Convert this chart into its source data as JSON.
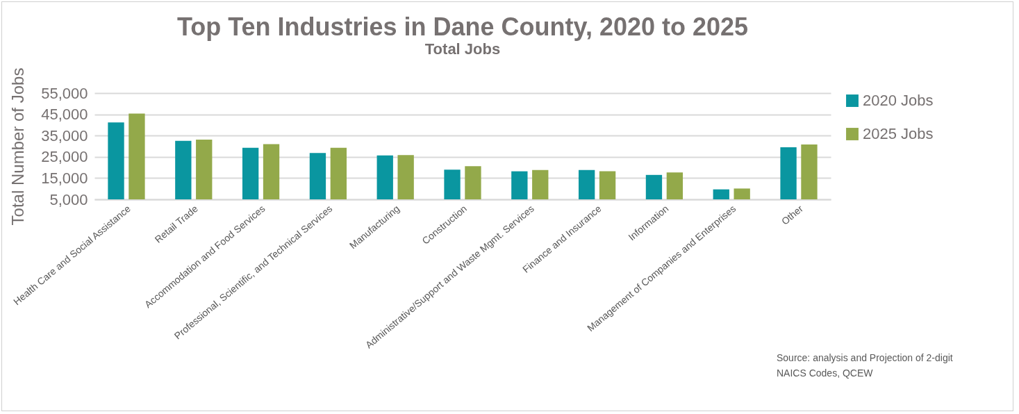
{
  "chart_data": {
    "type": "bar",
    "title": "Top Ten Industries in Dane County, 2020 to 2025",
    "subtitle": "Total Jobs",
    "ylabel": "Total Number of Jobs",
    "categories": [
      "Health Care and Social Assistance",
      "Retail Trade",
      "Accommodation and Food Services",
      "Professional, Scientific, and Technical Services",
      "Manufacturing",
      "Construction",
      "Administrative/Support and Waste Mgmt. Services",
      "Finance and Insurance",
      "Information",
      "Management of Companies and Enterprises",
      "Other"
    ],
    "series": [
      {
        "name": "2020 Jobs",
        "color": "#0a96a0",
        "values": [
          41200,
          32500,
          29300,
          26800,
          25700,
          19000,
          18200,
          18800,
          16500,
          9700,
          29500
        ]
      },
      {
        "name": "2025 Jobs",
        "color": "#93a94a",
        "values": [
          45400,
          33100,
          31000,
          29300,
          25800,
          20600,
          18800,
          18200,
          17700,
          10100,
          30800
        ]
      }
    ],
    "ylim": [
      5000,
      55000
    ],
    "yticks": [
      {
        "value": 5000,
        "label": "5,000"
      },
      {
        "value": 15000,
        "label": "15,000"
      },
      {
        "value": 25000,
        "label": "25,000"
      },
      {
        "value": 35000,
        "label": "35,000"
      },
      {
        "value": 45000,
        "label": "45,000"
      },
      {
        "value": 55000,
        "label": "55,000"
      }
    ],
    "grid": "y",
    "legend": "right",
    "annotations": [
      "Source: analysis and Projection of 2-digit NAICS Codes, QCEW"
    ]
  }
}
